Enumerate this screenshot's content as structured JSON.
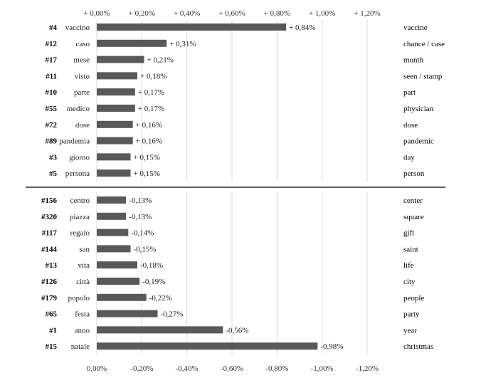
{
  "chart_data": [
    {
      "type": "bar",
      "orientation": "horizontal",
      "position": "top",
      "axis": {
        "xlim": [
          0,
          1.2
        ],
        "ticks": [
          "+ 0,00%",
          "+ 0,20%",
          "+ 0,40%",
          "+ 0,60%",
          "+ 0,80%",
          "+ 1,00%",
          "+ 1,20%"
        ],
        "tick_values": [
          0,
          0.2,
          0.4,
          0.6,
          0.8,
          1.0,
          1.2
        ],
        "placement": "top"
      },
      "grid": true,
      "rows": [
        {
          "rank": "#4",
          "word": "vaccino",
          "translation": "vaccine",
          "value": 0.84,
          "label": "+ 0,84%"
        },
        {
          "rank": "#12",
          "word": "caso",
          "translation": "chance / case",
          "value": 0.31,
          "label": "+ 0,31%"
        },
        {
          "rank": "#17",
          "word": "mese",
          "translation": "month",
          "value": 0.21,
          "label": "+ 0,21%"
        },
        {
          "rank": "#11",
          "word": "visto",
          "translation": "seen / stamp",
          "value": 0.18,
          "label": "+ 0,18%"
        },
        {
          "rank": "#10",
          "word": "parte",
          "translation": "part",
          "value": 0.17,
          "label": "+ 0,17%"
        },
        {
          "rank": "#55",
          "word": "medico",
          "translation": "physician",
          "value": 0.17,
          "label": "+ 0,17%"
        },
        {
          "rank": "#72",
          "word": "dose",
          "translation": "dose",
          "value": 0.16,
          "label": "+ 0,16%"
        },
        {
          "rank": "#89",
          "word": "pandemia",
          "translation": "pandemic",
          "value": 0.16,
          "label": "+ 0,16%"
        },
        {
          "rank": "#3",
          "word": "giorno",
          "translation": "day",
          "value": 0.15,
          "label": "+ 0,15%"
        },
        {
          "rank": "#5",
          "word": "persona",
          "translation": "person",
          "value": 0.15,
          "label": "+ 0,15%"
        }
      ]
    },
    {
      "type": "bar",
      "orientation": "horizontal",
      "position": "bottom",
      "axis": {
        "xlim": [
          0,
          -1.2
        ],
        "ticks": [
          "0,00%",
          "-0,20%",
          "-0,40%",
          "-0,60%",
          "-0,80%",
          "-1,00%",
          "-1,20%"
        ],
        "tick_values": [
          0,
          -0.2,
          -0.4,
          -0.6,
          -0.8,
          -1.0,
          -1.2
        ],
        "placement": "bottom"
      },
      "grid": true,
      "rows": [
        {
          "rank": "#156",
          "word": "centro",
          "translation": "center",
          "value": -0.13,
          "label": "-0,13%"
        },
        {
          "rank": "#320",
          "word": "piazza",
          "translation": "square",
          "value": -0.13,
          "label": "-0,13%"
        },
        {
          "rank": "#117",
          "word": "regalo",
          "translation": "gift",
          "value": -0.14,
          "label": "-0,14%"
        },
        {
          "rank": "#144",
          "word": "san",
          "translation": "saint",
          "value": -0.15,
          "label": "-0,15%"
        },
        {
          "rank": "#13",
          "word": "vita",
          "translation": "life",
          "value": -0.18,
          "label": "-0,18%"
        },
        {
          "rank": "#126",
          "word": "città",
          "translation": "city",
          "value": -0.19,
          "label": "-0,19%"
        },
        {
          "rank": "#179",
          "word": "popolo",
          "translation": "people",
          "value": -0.22,
          "label": "-0,22%"
        },
        {
          "rank": "#65",
          "word": "festa",
          "translation": "party",
          "value": -0.27,
          "label": "-0,27%"
        },
        {
          "rank": "#1",
          "word": "anno",
          "translation": "year",
          "value": -0.56,
          "label": "-0,56%"
        },
        {
          "rank": "#15",
          "word": "natale",
          "translation": "christmas",
          "value": -0.98,
          "label": "-0,98%"
        }
      ]
    }
  ],
  "colors": {
    "bar": "#595959",
    "grid": "#d9d9d9",
    "divider": "#000000"
  }
}
